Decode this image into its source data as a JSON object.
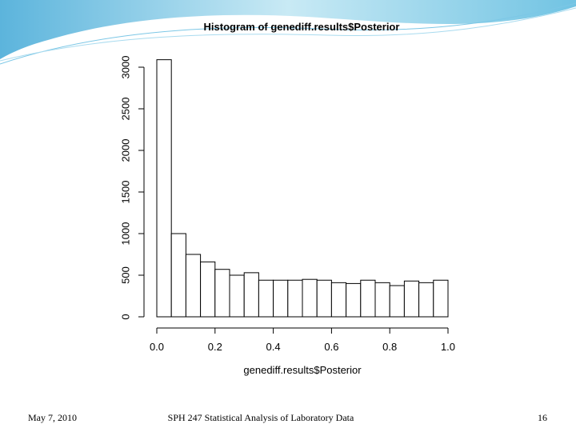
{
  "chart_data": {
    "type": "histogram",
    "title": "Histogram of genediff.results$Posterior",
    "x_label": "genediff.results$Posterior",
    "bins": [
      0,
      0.05,
      0.1,
      0.15,
      0.2,
      0.25,
      0.3,
      0.35,
      0.4,
      0.45,
      0.5,
      0.55,
      0.6,
      0.65,
      0.7,
      0.75,
      0.8,
      0.85,
      0.9,
      0.95,
      1
    ],
    "values": [
      3090,
      1000,
      750,
      660,
      570,
      500,
      530,
      440,
      440,
      440,
      450,
      440,
      410,
      400,
      440,
      410,
      375,
      430,
      410,
      440
    ],
    "color": "#ffffff",
    "xlim": [
      0,
      1
    ],
    "xticks": [
      {
        "value": 0,
        "label": "0.0"
      },
      {
        "value": 0.2,
        "label": "0.2"
      },
      {
        "value": 0.4,
        "label": "0.4"
      },
      {
        "value": 0.6,
        "label": "0.6"
      },
      {
        "value": 0.8,
        "label": "0.8"
      },
      {
        "value": 1,
        "label": "1.0"
      }
    ],
    "ylim": [
      0,
      3000
    ],
    "yticks": [
      0,
      500,
      1000,
      1500,
      2000,
      2500,
      3000
    ]
  },
  "footer": {
    "date": "May 7, 2010",
    "title": "SPH 247 Statistical Analysis of Laboratory Data",
    "page": "16"
  }
}
